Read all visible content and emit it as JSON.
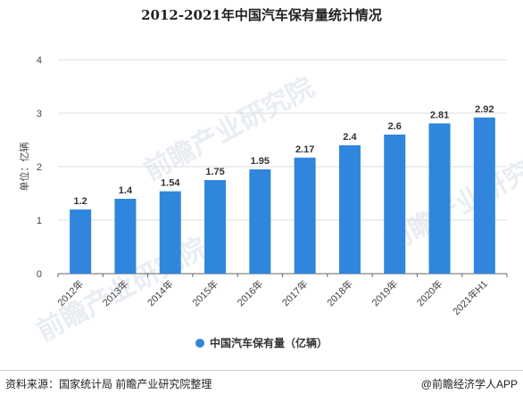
{
  "title": "2012-2021年中国汽车保有量统计情况",
  "source": "资料来源：国家统计局 前瞻产业研究院整理",
  "credit": "@前瞻经济学人APP",
  "watermark": "前瞻产业研究院",
  "colors": {
    "bar": "#2f86dc",
    "grid": "#dcdcdc",
    "axis": "#666666"
  },
  "chart_data": {
    "type": "bar",
    "title": "2012-2021年中国汽车保有量统计情况",
    "ylabel": "单位：亿辆",
    "xlabel": "",
    "ylim": [
      0,
      4
    ],
    "yticks": [
      0,
      1,
      2,
      3,
      4
    ],
    "grid": true,
    "legend": "bottom",
    "categories": [
      "2012年",
      "2013年",
      "2014年",
      "2015年",
      "2016年",
      "2017年",
      "2018年",
      "2019年",
      "2020年",
      "2021年H1"
    ],
    "series": [
      {
        "name": "中国汽车保有量（亿辆）",
        "values": [
          1.2,
          1.4,
          1.54,
          1.75,
          1.95,
          2.17,
          2.4,
          2.6,
          2.81,
          2.92
        ],
        "labels": [
          "1.2",
          "1.4",
          "1.54",
          "1.75",
          "1.95",
          "2.17",
          "2.4",
          "2.6",
          "2.81",
          "2.92"
        ]
      }
    ]
  }
}
